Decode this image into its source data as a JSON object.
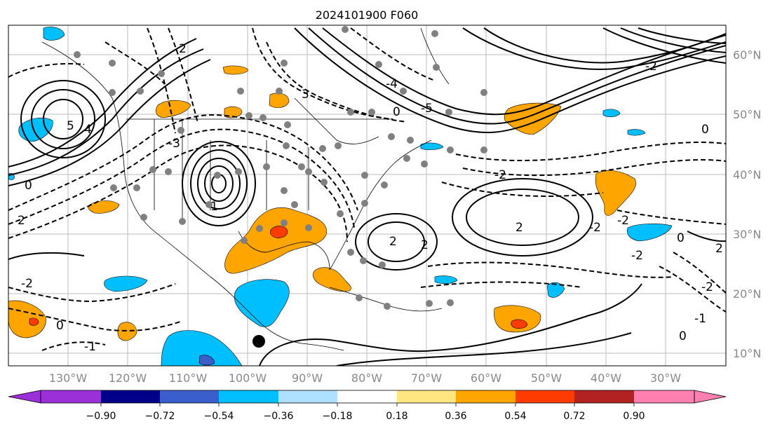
{
  "title": "2024101900 F060",
  "lon_labels": [
    "130°W",
    "120°W",
    "110°W",
    "100°W",
    "90°W",
    "80°W",
    "70°W",
    "60°W",
    "50°W",
    "40°W",
    "30°W"
  ],
  "lat_labels": [
    "60°N",
    "50°N",
    "40°N",
    "30°N",
    "20°N",
    "10°N"
  ],
  "colorbar": {
    "ticks": [
      "−0.90",
      "−0.72",
      "−0.54",
      "−0.36",
      "−0.18",
      "0.18",
      "0.36",
      "0.54",
      "0.72",
      "0.90"
    ],
    "colors": [
      "#9b30d9",
      "#00008b",
      "#3a5fcd",
      "#00bfff",
      "#aee0ff",
      "#ffffff",
      "#ffe680",
      "#ffa500",
      "#ff3c00",
      "#b22222",
      "#ff80b0"
    ]
  },
  "contour_labels": [
    "0",
    "2",
    "-2",
    "4",
    "5",
    "-5",
    "-4",
    "-3",
    "3",
    "-1",
    "1",
    "0",
    "2",
    "-2",
    "2",
    "-2",
    "-2",
    "0",
    "0",
    "-2",
    "2",
    "-1",
    "-2",
    "0",
    "-2",
    "2",
    "0",
    "2"
  ],
  "marker": "black-dot-station"
}
